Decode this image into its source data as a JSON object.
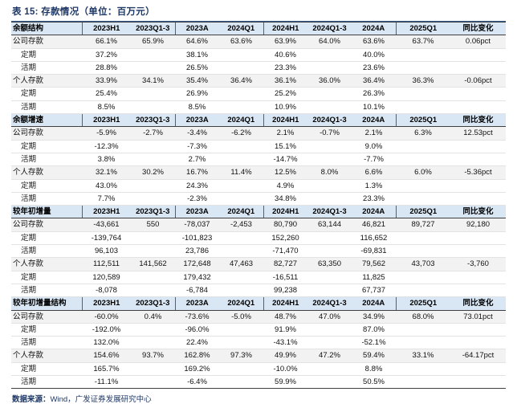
{
  "title": "表 15: 存款情况（单位：百万元）",
  "columns": [
    "2023H1",
    "2023Q1-3",
    "2023A",
    "2024Q1",
    "2024H1",
    "2024Q1-3",
    "2024A",
    "2025Q1",
    "同比变化"
  ],
  "colors": {
    "title_navy": "#1f3864",
    "header_bg": "#d9e7f4",
    "key_row_bg": "#f2f2f2",
    "heavy_rule": "#404040",
    "title_rule": "#2e5a8c"
  },
  "sections": [
    {
      "header": "余额结构",
      "rows": [
        {
          "label": "公司存款",
          "style": "key",
          "values": [
            "66.1%",
            "65.9%",
            "64.6%",
            "63.6%",
            "63.9%",
            "64.0%",
            "63.6%",
            "63.7%",
            "0.06pct"
          ]
        },
        {
          "label": "定期",
          "style": "sub",
          "values": [
            "37.2%",
            "",
            "38.1%",
            "",
            "40.6%",
            "",
            "40.0%",
            "",
            ""
          ]
        },
        {
          "label": "活期",
          "style": "sub",
          "values": [
            "28.8%",
            "",
            "26.5%",
            "",
            "23.3%",
            "",
            "23.6%",
            "",
            ""
          ]
        },
        {
          "label": "个人存款",
          "style": "key",
          "values": [
            "33.9%",
            "34.1%",
            "35.4%",
            "36.4%",
            "36.1%",
            "36.0%",
            "36.4%",
            "36.3%",
            "-0.06pct"
          ]
        },
        {
          "label": "定期",
          "style": "sub",
          "values": [
            "25.4%",
            "",
            "26.9%",
            "",
            "25.2%",
            "",
            "26.3%",
            "",
            ""
          ]
        },
        {
          "label": "活期",
          "style": "sub",
          "values": [
            "8.5%",
            "",
            "8.5%",
            "",
            "10.9%",
            "",
            "10.1%",
            "",
            ""
          ]
        }
      ]
    },
    {
      "header": "余额增速",
      "rows": [
        {
          "label": "公司存款",
          "style": "key",
          "values": [
            "-5.9%",
            "-2.7%",
            "-3.4%",
            "-6.2%",
            "2.1%",
            "-0.7%",
            "2.1%",
            "6.3%",
            "12.53pct"
          ]
        },
        {
          "label": "定期",
          "style": "sub",
          "values": [
            "-12.3%",
            "",
            "-7.3%",
            "",
            "15.1%",
            "",
            "9.0%",
            "",
            ""
          ]
        },
        {
          "label": "活期",
          "style": "sub",
          "values": [
            "3.8%",
            "",
            "2.7%",
            "",
            "-14.7%",
            "",
            "-7.7%",
            "",
            ""
          ]
        },
        {
          "label": "个人存款",
          "style": "key",
          "values": [
            "32.1%",
            "30.2%",
            "16.7%",
            "11.4%",
            "12.5%",
            "8.0%",
            "6.6%",
            "6.0%",
            "-5.36pct"
          ]
        },
        {
          "label": "定期",
          "style": "sub",
          "values": [
            "43.0%",
            "",
            "24.3%",
            "",
            "4.9%",
            "",
            "1.3%",
            "",
            ""
          ]
        },
        {
          "label": "活期",
          "style": "sub",
          "values": [
            "7.7%",
            "",
            "-2.3%",
            "",
            "34.8%",
            "",
            "23.3%",
            "",
            ""
          ]
        }
      ]
    },
    {
      "header": "较年初增量",
      "rows": [
        {
          "label": "公司存款",
          "style": "key",
          "values": [
            "-43,661",
            "550",
            "-78,037",
            "-2,453",
            "80,790",
            "63,144",
            "46,821",
            "89,727",
            "92,180"
          ]
        },
        {
          "label": "定期",
          "style": "sub",
          "values": [
            "-139,764",
            "",
            "-101,823",
            "",
            "152,260",
            "",
            "116,652",
            "",
            ""
          ]
        },
        {
          "label": "活期",
          "style": "sub",
          "values": [
            "96,103",
            "",
            "23,786",
            "",
            "-71,470",
            "",
            "-69,831",
            "",
            ""
          ]
        },
        {
          "label": "个人存款",
          "style": "key",
          "values": [
            "112,511",
            "141,562",
            "172,648",
            "47,463",
            "82,727",
            "63,350",
            "79,562",
            "43,703",
            "-3,760"
          ]
        },
        {
          "label": "定期",
          "style": "sub",
          "values": [
            "120,589",
            "",
            "179,432",
            "",
            "-16,511",
            "",
            "11,825",
            "",
            ""
          ]
        },
        {
          "label": "活期",
          "style": "sub",
          "values": [
            "-8,078",
            "",
            "-6,784",
            "",
            "99,238",
            "",
            "67,737",
            "",
            ""
          ]
        }
      ]
    },
    {
      "header": "较年初增量结构",
      "rows": [
        {
          "label": "公司存款",
          "style": "key",
          "values": [
            "-60.0%",
            "0.4%",
            "-73.6%",
            "-5.0%",
            "48.7%",
            "47.0%",
            "34.9%",
            "68.0%",
            "73.01pct"
          ]
        },
        {
          "label": "定期",
          "style": "sub",
          "values": [
            "-192.0%",
            "",
            "-96.0%",
            "",
            "91.9%",
            "",
            "87.0%",
            "",
            ""
          ]
        },
        {
          "label": "活期",
          "style": "sub",
          "values": [
            "132.0%",
            "",
            "22.4%",
            "",
            "-43.1%",
            "",
            "-52.1%",
            "",
            ""
          ]
        },
        {
          "label": "个人存款",
          "style": "key",
          "values": [
            "154.6%",
            "93.7%",
            "162.8%",
            "97.3%",
            "49.9%",
            "47.2%",
            "59.4%",
            "33.1%",
            "-64.17pct"
          ]
        },
        {
          "label": "定期",
          "style": "sub",
          "values": [
            "165.7%",
            "",
            "169.2%",
            "",
            "-10.0%",
            "",
            "8.8%",
            "",
            ""
          ]
        },
        {
          "label": "活期",
          "style": "sub",
          "values": [
            "-11.1%",
            "",
            "-6.4%",
            "",
            "59.9%",
            "",
            "50.5%",
            "",
            ""
          ]
        }
      ]
    }
  ],
  "footer": {
    "label": "数据来源：",
    "text": "Wind，广发证券发展研究中心"
  }
}
